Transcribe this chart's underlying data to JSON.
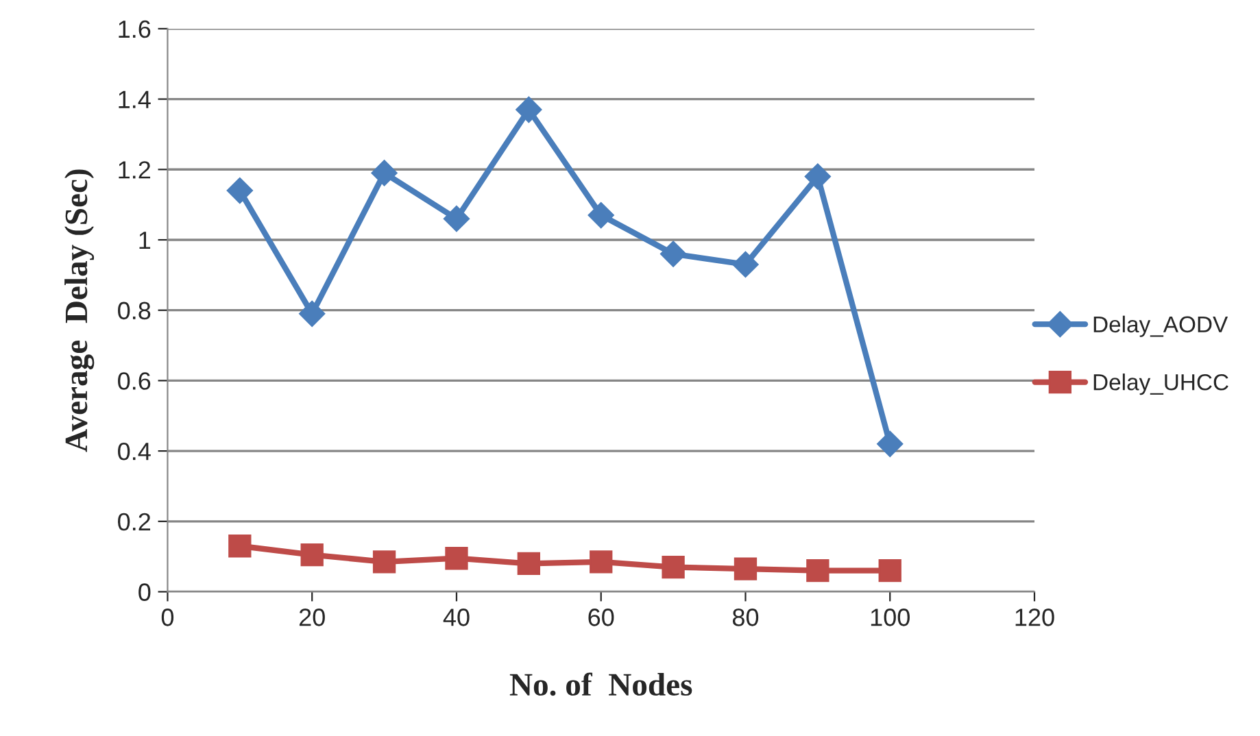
{
  "chart_data": {
    "type": "line",
    "xlabel": "No. of  Nodes",
    "ylabel": "Average  Delay (Sec)",
    "x": [
      10,
      20,
      30,
      40,
      50,
      60,
      70,
      80,
      90,
      100
    ],
    "series": [
      {
        "name": "Delay_AODV",
        "color": "#4a7ebb",
        "marker": "diamond",
        "values": [
          1.14,
          0.79,
          1.19,
          1.06,
          1.37,
          1.07,
          0.96,
          0.93,
          1.18,
          0.42
        ]
      },
      {
        "name": "Delay_UHCC",
        "color": "#be4b48",
        "marker": "square",
        "values": [
          0.13,
          0.105,
          0.085,
          0.095,
          0.08,
          0.085,
          0.07,
          0.065,
          0.06,
          0.06
        ]
      }
    ],
    "xlim": [
      0,
      120
    ],
    "xticks": [
      0,
      20,
      40,
      60,
      80,
      100,
      120
    ],
    "ylim": [
      0,
      1.6
    ],
    "yticks": [
      0,
      0.2,
      0.4,
      0.6,
      0.8,
      1,
      1.2,
      1.4,
      1.6
    ],
    "grid": "y",
    "legend": "right",
    "line_style": "solid"
  }
}
